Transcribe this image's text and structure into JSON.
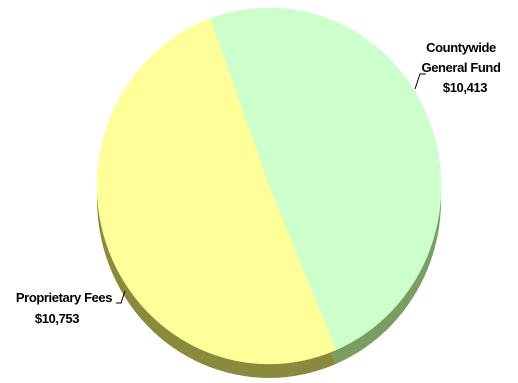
{
  "chart_data": {
    "type": "pie",
    "title": "",
    "slices": [
      {
        "label_lines": [
          "Countywide",
          "General Fund"
        ],
        "value": 10413,
        "value_label": "$10,413",
        "color": "#ccffcc",
        "side_color": "#7a9e62",
        "label_position": "upper-right"
      },
      {
        "label_lines": [
          "Proprietary Fees"
        ],
        "value": 10753,
        "value_label": "$10,753",
        "color": "#ffff99",
        "side_color": "#8a8a3c",
        "label_position": "lower-left"
      }
    ],
    "start_angle_deg": -110,
    "style": "3d-tilted",
    "legend": "none"
  }
}
